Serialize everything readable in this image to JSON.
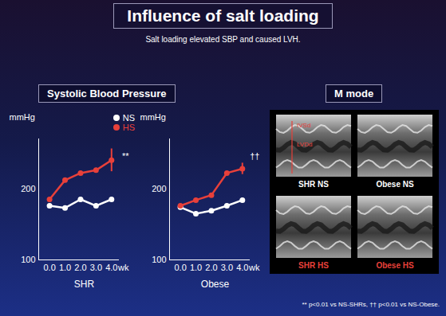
{
  "title": "Influence of salt loading",
  "subtitle": "Salt loading elevated SBP and caused LVH.",
  "section_labels": [
    "Systolic Blood Pressure",
    "M mode"
  ],
  "chart_data": [
    {
      "type": "line",
      "xlabel": "SHR",
      "ylabel": "mmHg",
      "x_unit": "wk",
      "x": [
        0,
        1,
        2,
        3,
        4
      ],
      "xlim": [
        -0.7,
        4.5
      ],
      "xticks": [
        0,
        1,
        2,
        3,
        4
      ],
      "ylim": [
        100,
        270
      ],
      "yticks": [
        100,
        200
      ],
      "legend": "top-right",
      "annotation": "**",
      "series": [
        {
          "name": "NS",
          "color": "#ffffff",
          "marker": "circle",
          "values": [
            176,
            173,
            185,
            176,
            185
          ]
        },
        {
          "name": "HS",
          "color": "#e8403a",
          "marker": "circle",
          "values": [
            185,
            212,
            222,
            226,
            240
          ],
          "errors": [
            null,
            null,
            null,
            null,
            16
          ]
        }
      ]
    },
    {
      "type": "line",
      "xlabel": "Obese",
      "ylabel": "mmHg",
      "x_unit": "wk",
      "x": [
        0,
        1,
        2,
        3,
        4
      ],
      "xlim": [
        -0.7,
        4.5
      ],
      "xticks": [
        0,
        1,
        2,
        3,
        4
      ],
      "ylim": [
        100,
        270
      ],
      "yticks": [
        100,
        200
      ],
      "annotation": "††",
      "series": [
        {
          "name": "NS",
          "color": "#ffffff",
          "marker": "circle",
          "values": [
            174,
            165,
            169,
            176,
            184
          ]
        },
        {
          "name": "HS",
          "color": "#e8403a",
          "marker": "circle",
          "values": [
            176,
            184,
            191,
            222,
            228
          ],
          "errors": [
            null,
            null,
            null,
            null,
            8
          ]
        }
      ]
    }
  ],
  "m_mode": {
    "image_labels": [
      "IVSd",
      "LVDd"
    ],
    "panels": [
      {
        "label": "SHR NS",
        "color": "#ffffff"
      },
      {
        "label": "Obese NS",
        "color": "#ffffff"
      },
      {
        "label": "SHR HS",
        "color": "#e8403a"
      },
      {
        "label": "Obese HS",
        "color": "#e8403a"
      }
    ]
  },
  "footnote": "** p<0.01 vs NS-SHRs, †† p<0.01 vs NS-Obese."
}
